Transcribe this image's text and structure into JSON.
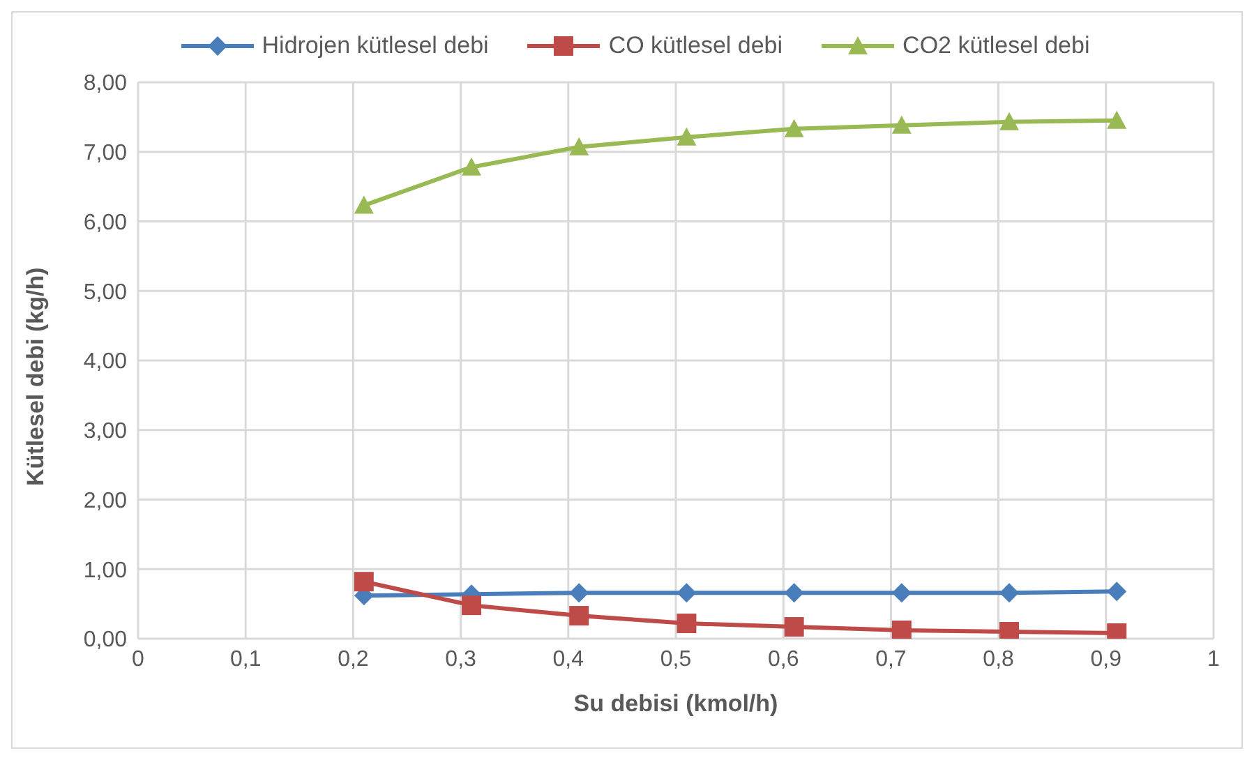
{
  "chart_data": {
    "type": "line",
    "xlabel": "Su debisi (kmol/h)",
    "ylabel": "Kütlesel debi (kg/h)",
    "xlim": [
      0,
      1
    ],
    "xticks": [
      0,
      {
        "value": 0.1,
        "label": "0,1"
      },
      {
        "value": 0.2,
        "label": "0,2"
      },
      {
        "value": 0.3,
        "label": "0,3"
      },
      {
        "value": 0.4,
        "label": "0,4"
      },
      {
        "value": 0.5,
        "label": "0,5"
      },
      {
        "value": 0.6,
        "label": "0,6"
      },
      {
        "value": 0.7,
        "label": "0,7"
      },
      {
        "value": 0.8,
        "label": "0,8"
      },
      {
        "value": 0.9,
        "label": "0,9"
      },
      1
    ],
    "ylim": [
      0,
      8
    ],
    "yticks": [
      {
        "value": 0,
        "label": "0,00"
      },
      {
        "value": 1,
        "label": "1,00"
      },
      {
        "value": 2,
        "label": "2,00"
      },
      {
        "value": 3,
        "label": "3,00"
      },
      {
        "value": 4,
        "label": "4,00"
      },
      {
        "value": 5,
        "label": "5,00"
      },
      {
        "value": 6,
        "label": "6,00"
      },
      {
        "value": 7,
        "label": "7,00"
      },
      {
        "value": 8,
        "label": "8,00"
      }
    ],
    "grid": true,
    "legend": "top",
    "line_style": "solid",
    "x": [
      0.21,
      0.31,
      0.41,
      0.51,
      0.61,
      0.71,
      0.81,
      0.91
    ],
    "series": [
      {
        "name": "Hidrojen kütlesel debi",
        "color": "#4a7ebb",
        "marker": "diamond",
        "values": [
          0.62,
          0.64,
          0.66,
          0.66,
          0.66,
          0.66,
          0.66,
          0.68
        ]
      },
      {
        "name": "CO kütlesel debi",
        "color": "#be4b48",
        "marker": "square",
        "values": [
          0.82,
          0.48,
          0.33,
          0.22,
          0.17,
          0.12,
          0.1,
          0.08
        ]
      },
      {
        "name": "CO2 kütlesel debi",
        "color": "#98b954",
        "marker": "triangle",
        "values": [
          6.23,
          6.78,
          7.07,
          7.21,
          7.33,
          7.38,
          7.43,
          7.45
        ]
      }
    ]
  }
}
